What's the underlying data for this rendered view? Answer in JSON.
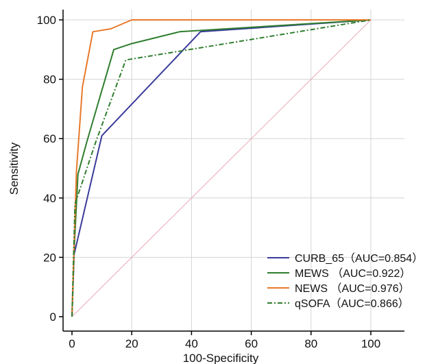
{
  "chart_data": {
    "type": "line",
    "xlabel": "100-Specificity",
    "ylabel": "Sensitivity",
    "xlim": [
      0,
      100
    ],
    "ylim": [
      0,
      100
    ],
    "xticks": [
      0,
      20,
      40,
      60,
      80,
      100
    ],
    "yticks": [
      0,
      20,
      40,
      60,
      80,
      100
    ],
    "grid": true,
    "legend_position": "bottom-right",
    "series": [
      {
        "name": "CURB_65（AUC=0.854）",
        "color": "#3a3a9a",
        "dash": "solid",
        "x": [
          0,
          0.7,
          10,
          43,
          100
        ],
        "y": [
          0,
          21,
          61,
          96,
          100
        ]
      },
      {
        "name": "MEWS （AUC=0.922）",
        "color": "#2e7d2e",
        "dash": "solid",
        "x": [
          0,
          0.7,
          2,
          5,
          14,
          20,
          36,
          100
        ],
        "y": [
          0,
          22,
          48,
          59,
          90,
          92,
          96,
          100
        ]
      },
      {
        "name": "NEWS （AUC=0.976）",
        "color": "#e8792a",
        "dash": "solid",
        "x": [
          0,
          0.7,
          1.5,
          3.5,
          7,
          13,
          20,
          100
        ],
        "y": [
          0,
          24,
          49,
          77.5,
          96,
          97,
          100,
          100
        ]
      },
      {
        "name": "qSOFA（AUC=0.866）",
        "color": "#2e7d2e",
        "dash": "dashdot",
        "x": [
          0,
          1,
          8,
          18,
          100
        ],
        "y": [
          0,
          38,
          59,
          86.5,
          100
        ]
      },
      {
        "name": "",
        "color": "#e8a8b4",
        "dash": "solid",
        "x": [
          0,
          100
        ],
        "y": [
          0,
          100
        ],
        "role": "reference"
      }
    ]
  }
}
